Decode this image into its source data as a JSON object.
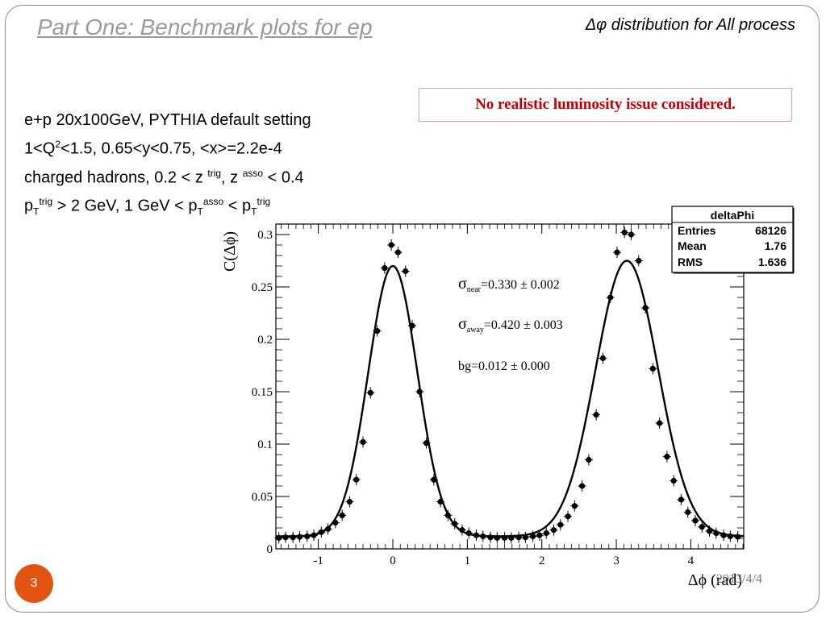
{
  "slide": {
    "title": "Part One: Benchmark plots for ep",
    "subtitle": "Δφ distribution for All process",
    "notice": "No realistic luminosity issue considered.",
    "page_number": "3",
    "date": "2013/4/4",
    "info_lines": {
      "line1": "e+p 20x100GeV, PYTHIA default setting",
      "line2_a": "1<Q",
      "line2_sup": "2",
      "line2_b": "<1.5,  0.65<y<0.75, <x>=2.2e-4",
      "line3_a": "charged hadrons, 0.2 < z ",
      "line3_sup1": "trig",
      "line3_b": ", z ",
      "line3_sup2": "asso",
      "line3_c": " < 0.4",
      "line4_p1": "p",
      "line4_sub1": "T",
      "line4_sup1": "trig",
      "line4_b": " > 2 GeV, 1 GeV < p",
      "line4_sub2": "T",
      "line4_sup2": "asso",
      "line4_c": " < p",
      "line4_sub3": "T",
      "line4_sup3": "trig"
    }
  },
  "chart_data": {
    "type": "scatter",
    "ylabel": "C(Δϕ)",
    "xlabel": "Δϕ (rad)",
    "xlim": [
      -1.57,
      4.71
    ],
    "ylim": [
      0,
      0.31
    ],
    "x_ticks": [
      "-1",
      "0",
      "1",
      "2",
      "3",
      "4"
    ],
    "y_ticks": [
      "0",
      "0.05",
      "0.1",
      "0.15",
      "0.2",
      "0.25",
      "0.3"
    ],
    "stats_box": {
      "name": "deltaPhi",
      "rows": [
        {
          "label": "Entries",
          "value": "68126"
        },
        {
          "label": "Mean",
          "value": "1.76"
        },
        {
          "label": "RMS",
          "value": "1.636"
        }
      ]
    },
    "fit_labels": {
      "sigma_near_sym": "σ",
      "sigma_near_sub": "near",
      "sigma_near_val": "=0.330 ± 0.002",
      "sigma_away_sym": "σ",
      "sigma_away_sub": "away",
      "sigma_away_val": "=0.420 ± 0.003",
      "bg": "bg=0.012 ± 0.000"
    },
    "fit": {
      "near_mu": 0.0,
      "near_sigma": 0.33,
      "near_amp": 0.258,
      "away_mu": 3.1416,
      "away_sigma": 0.42,
      "away_amp": 0.263,
      "bg": 0.012
    },
    "series": [
      {
        "x": [
          -1.53,
          -1.44,
          -1.34,
          -1.25,
          -1.15,
          -1.06,
          -0.96,
          -0.87,
          -0.77,
          -0.68,
          -0.58,
          -0.49,
          -0.4,
          -0.3,
          -0.21,
          -0.11,
          -0.02,
          0.07,
          0.17,
          0.26,
          0.36,
          0.45,
          0.55,
          0.64,
          0.74,
          0.83,
          0.93,
          1.02,
          1.12,
          1.21,
          1.31,
          1.4,
          1.5,
          1.59,
          1.69,
          1.78,
          1.88,
          1.97,
          2.06,
          2.16,
          2.25,
          2.35,
          2.44,
          2.54,
          2.63,
          2.73,
          2.82,
          2.92,
          3.01,
          3.11,
          3.2,
          3.3,
          3.39,
          3.49,
          3.58,
          3.68,
          3.77,
          3.87,
          3.96,
          4.06,
          4.15,
          4.25,
          4.34,
          4.44,
          4.53,
          4.63
        ],
        "y": [
          0.0105,
          0.011,
          0.011,
          0.0115,
          0.012,
          0.013,
          0.016,
          0.019,
          0.025,
          0.032,
          0.045,
          0.066,
          0.102,
          0.149,
          0.208,
          0.268,
          0.29,
          0.283,
          0.265,
          0.213,
          0.15,
          0.101,
          0.066,
          0.045,
          0.032,
          0.024,
          0.018,
          0.015,
          0.013,
          0.012,
          0.011,
          0.0105,
          0.0105,
          0.0105,
          0.011,
          0.011,
          0.012,
          0.013,
          0.015,
          0.018,
          0.023,
          0.031,
          0.041,
          0.06,
          0.085,
          0.128,
          0.182,
          0.24,
          0.283,
          0.302,
          0.3,
          0.275,
          0.23,
          0.172,
          0.12,
          0.088,
          0.065,
          0.047,
          0.035,
          0.027,
          0.021,
          0.017,
          0.015,
          0.013,
          0.012,
          0.0115
        ]
      }
    ]
  }
}
